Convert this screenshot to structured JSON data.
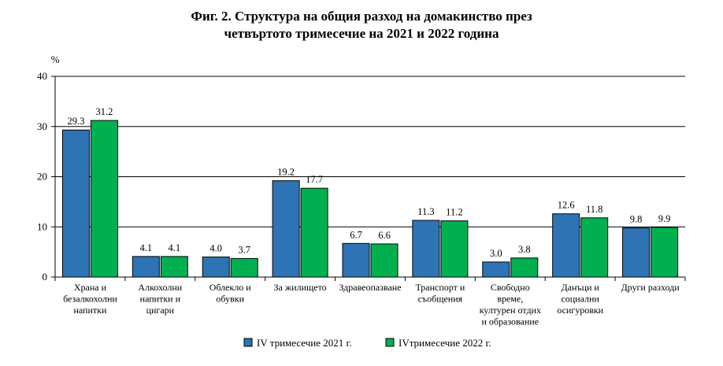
{
  "chart_data": {
    "type": "bar",
    "title_lines": [
      "Фиг. 2. Структура на общия разход на домакинство през",
      "четвъртото тримесечие на 2021 и 2022 година"
    ],
    "ylabel": "%",
    "ylim": [
      0,
      40
    ],
    "yticks": [
      "0",
      "10",
      "20",
      "30",
      "40"
    ],
    "grid": true,
    "legend_position": "bottom",
    "categories": [
      [
        "Храна и",
        "безалкохолни",
        "напитки"
      ],
      [
        "Алкохолни",
        "напитки  и",
        "цигари"
      ],
      [
        "Облекло и",
        "обувки"
      ],
      [
        "За жилището"
      ],
      [
        "Здравеопазване"
      ],
      [
        "Транспорт и",
        "съобщения"
      ],
      [
        "Свободно",
        "време,",
        "културен отдих",
        "и образование"
      ],
      [
        "Данъци и",
        "социални",
        "осигуровки"
      ],
      [
        "Други разходи"
      ]
    ],
    "series": [
      {
        "name": "IV тримесечие 2021 г.",
        "color": "#2E74B5",
        "values": [
          29.3,
          4.1,
          4.0,
          19.2,
          6.7,
          11.3,
          3.0,
          12.6,
          9.8
        ],
        "labels": [
          "29.3",
          "4.1",
          "4.0",
          "19.2",
          "6.7",
          "11.3",
          "3.0",
          "12.6",
          "9.8"
        ]
      },
      {
        "name": "IVтримесечие 2022 г.",
        "color": "#00B050",
        "values": [
          31.2,
          4.1,
          3.7,
          17.7,
          6.6,
          11.2,
          3.8,
          11.8,
          9.9
        ],
        "labels": [
          "31.2",
          "4.1",
          "3.7",
          "17.7",
          "6.6",
          "11.2",
          "3.8",
          "11.8",
          "9.9"
        ]
      }
    ]
  }
}
